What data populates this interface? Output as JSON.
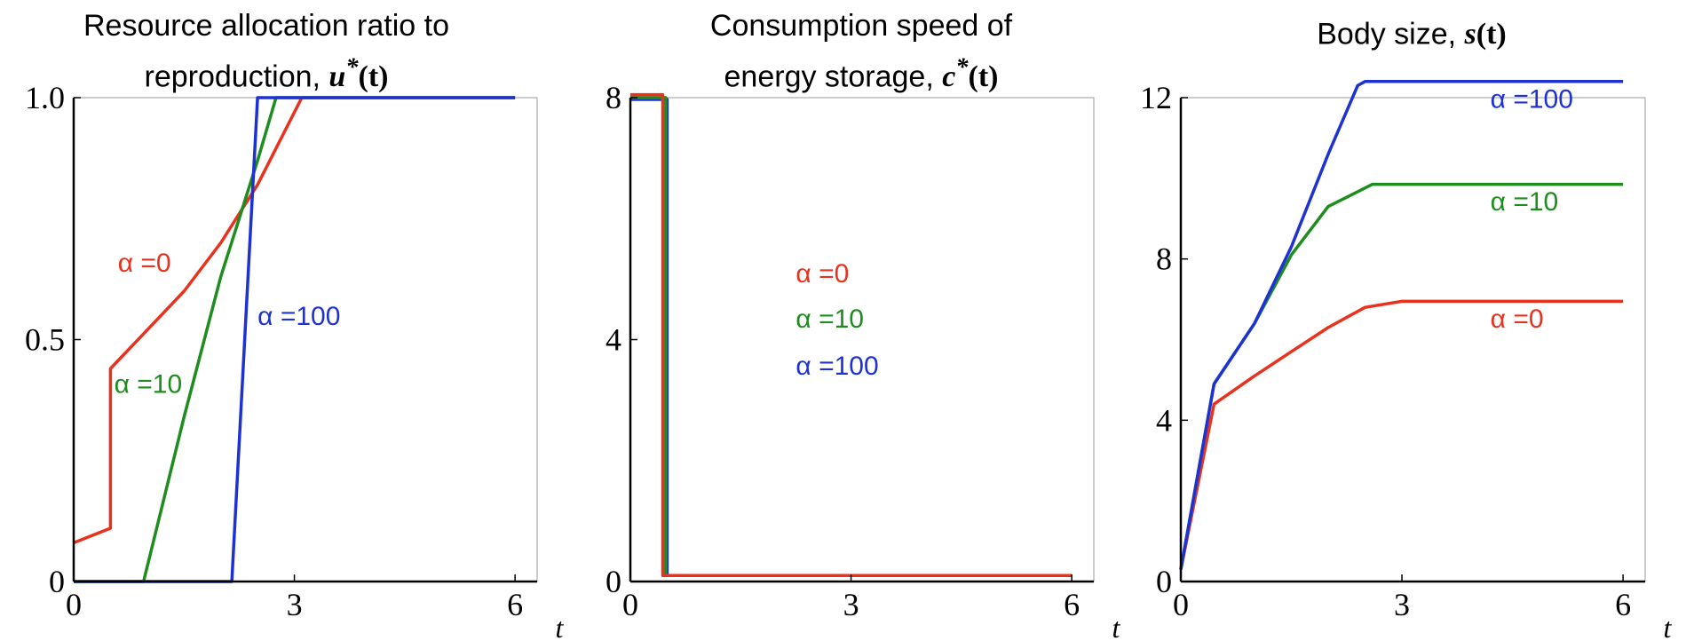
{
  "colors": {
    "red": "#e8321e",
    "green": "#1e8c1e",
    "blue": "#1e32d2",
    "axis": "#000000"
  },
  "chart_data": [
    {
      "type": "line",
      "title_line1": "Resource allocation ratio to",
      "title_line2_text": "reproduction,",
      "title_symbol": "u",
      "title_symbol_sup": "*",
      "title_symbol_arg": "(t)",
      "xlabel": "t",
      "ylabel": "",
      "xlim": [
        0,
        6.3
      ],
      "ylim": [
        0,
        1.0
      ],
      "xticks": [
        0,
        3,
        6
      ],
      "xtick_labels": [
        "0",
        "3",
        "6"
      ],
      "yticks": [
        0,
        0.5,
        1.0
      ],
      "ytick_labels": [
        "0",
        "0.5",
        "1.0"
      ],
      "grid": false,
      "series": [
        {
          "name": "α =0",
          "color": "red",
          "x": [
            0,
            0.5,
            0.5,
            1.0,
            1.5,
            2.0,
            2.5,
            3.1,
            6.0
          ],
          "y": [
            0.08,
            0.11,
            0.44,
            0.52,
            0.6,
            0.7,
            0.82,
            1.0,
            1.0
          ]
        },
        {
          "name": "α =10",
          "color": "green",
          "x": [
            0,
            0.95,
            1.5,
            2.0,
            2.5,
            2.75,
            6.0
          ],
          "y": [
            0,
            0,
            0.34,
            0.63,
            0.87,
            1.0,
            1.0
          ]
        },
        {
          "name": "α =100",
          "color": "blue",
          "x": [
            0,
            2.15,
            2.5,
            6.0
          ],
          "y": [
            0,
            0,
            1.0,
            1.0
          ]
        }
      ],
      "annotations": [
        {
          "text": "α =0",
          "color": "red",
          "x": 0.6,
          "y": 0.64
        },
        {
          "text": "α =10",
          "color": "green",
          "x": 0.55,
          "y": 0.39
        },
        {
          "text": "α =100",
          "color": "blue",
          "x": 2.5,
          "y": 0.53
        }
      ]
    },
    {
      "type": "line",
      "title_line1": "Consumption speed of",
      "title_line2_text": "energy storage,",
      "title_symbol": "c",
      "title_symbol_sup": "*",
      "title_symbol_arg": "(t)",
      "xlabel": "t",
      "ylabel": "",
      "xlim": [
        0,
        6.3
      ],
      "ylim": [
        0,
        8
      ],
      "xticks": [
        0,
        3,
        6
      ],
      "xtick_labels": [
        "0",
        "3",
        "6"
      ],
      "yticks": [
        0,
        4,
        8
      ],
      "ytick_labels": [
        "0",
        "4",
        "8"
      ],
      "grid": false,
      "series": [
        {
          "name": "α =100",
          "color": "blue",
          "x": [
            0,
            0.5,
            0.5,
            6.0
          ],
          "y": [
            7.97,
            7.97,
            0.1,
            0.1
          ]
        },
        {
          "name": "α =10",
          "color": "green",
          "x": [
            0,
            0.48,
            0.48,
            6.0
          ],
          "y": [
            8.0,
            8.0,
            0.1,
            0.1
          ]
        },
        {
          "name": "α =0",
          "color": "red",
          "x": [
            0,
            0.44,
            0.44,
            6.0
          ],
          "y": [
            8.05,
            8.05,
            0.1,
            0.1
          ]
        }
      ],
      "annotations": [
        {
          "text": "α =0",
          "color": "red",
          "x": 2.25,
          "y": 4.95
        },
        {
          "text": "α =10",
          "color": "green",
          "x": 2.25,
          "y": 4.2
        },
        {
          "text": "α =100",
          "color": "blue",
          "x": 2.25,
          "y": 3.42
        }
      ]
    },
    {
      "type": "line",
      "title_line1": "",
      "title_line2_text": "Body size,",
      "title_symbol": "s",
      "title_symbol_sup": "",
      "title_symbol_arg": "(t)",
      "xlabel": "t",
      "ylabel": "",
      "xlim": [
        0,
        6.3
      ],
      "ylim": [
        0,
        12
      ],
      "xticks": [
        0,
        3,
        6
      ],
      "xtick_labels": [
        "0",
        "3",
        "6"
      ],
      "yticks": [
        0,
        4,
        8,
        12
      ],
      "ytick_labels": [
        "0",
        "4",
        "8",
        "12"
      ],
      "grid": false,
      "series": [
        {
          "name": "α =0",
          "color": "red",
          "x": [
            0,
            0.45,
            1.0,
            1.5,
            2.0,
            2.5,
            3.0,
            6.0
          ],
          "y": [
            0.3,
            4.4,
            5.1,
            5.7,
            6.3,
            6.8,
            6.95,
            6.95
          ]
        },
        {
          "name": "α =10",
          "color": "green",
          "x": [
            0,
            0.45,
            1.0,
            1.5,
            2.0,
            2.6,
            6.0
          ],
          "y": [
            0.3,
            4.9,
            6.4,
            8.1,
            9.3,
            9.85,
            9.85
          ]
        },
        {
          "name": "α =100",
          "color": "blue",
          "x": [
            0,
            0.45,
            1.0,
            1.5,
            2.0,
            2.4,
            2.5,
            6.0
          ],
          "y": [
            0.3,
            4.9,
            6.4,
            8.3,
            10.6,
            12.3,
            12.4,
            12.4
          ]
        }
      ],
      "annotations": [
        {
          "text": "α =100",
          "color": "blue",
          "x": 4.2,
          "y": 11.75
        },
        {
          "text": "α =10",
          "color": "green",
          "x": 4.2,
          "y": 9.2
        },
        {
          "text": "α =0",
          "color": "red",
          "x": 4.2,
          "y": 6.3
        }
      ]
    }
  ]
}
